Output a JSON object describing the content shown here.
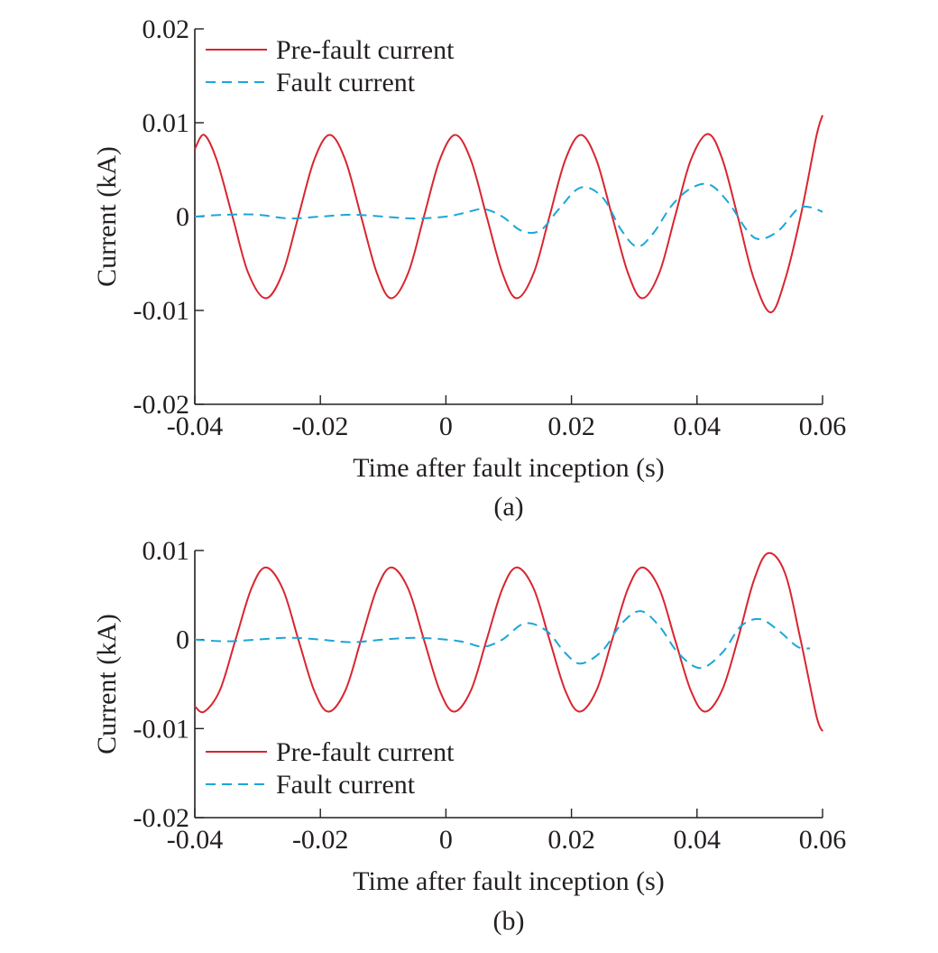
{
  "chart_data": [
    {
      "panel_caption": "(a)",
      "type": "line",
      "xlabel": "Time after fault inception (s)",
      "ylabel": "Current (kA)",
      "xlim": [
        -0.04,
        0.06
      ],
      "ylim": [
        -0.02,
        0.02
      ],
      "xticks": [
        -0.04,
        -0.02,
        0,
        0.02,
        0.04,
        0.06
      ],
      "xtick_labels": [
        "-0.04",
        "-0.02",
        "0",
        "0.02",
        "0.04",
        "0.06"
      ],
      "yticks": [
        -0.02,
        -0.01,
        0,
        0.01,
        0.02
      ],
      "ytick_labels": [
        "-0.02",
        "-0.01",
        "0",
        "0.01",
        "0.02"
      ],
      "legend_position": "top-left",
      "grid": false,
      "series": [
        {
          "name": "Pre-fault current",
          "color": "#d9252f",
          "dash": "solid",
          "x": [
            -0.04,
            -0.0385,
            -0.0365,
            -0.034,
            -0.0315,
            -0.0287,
            -0.026,
            -0.0235,
            -0.021,
            -0.0185,
            -0.016,
            -0.0135,
            -0.011,
            -0.0087,
            -0.006,
            -0.0035,
            -0.001,
            0.0015,
            0.004,
            0.0065,
            0.009,
            0.0113,
            0.014,
            0.0165,
            0.019,
            0.0215,
            0.024,
            0.0265,
            0.029,
            0.0313,
            0.034,
            0.0365,
            0.039,
            0.0417,
            0.044,
            0.0465,
            0.049,
            0.0517,
            0.054,
            0.0565,
            0.059,
            0.06
          ],
          "y": [
            0.0072,
            0.0087,
            0.006,
            0.0,
            -0.006,
            -0.0087,
            -0.006,
            0.0,
            0.006,
            0.0087,
            0.006,
            0.0,
            -0.006,
            -0.0087,
            -0.006,
            0.0,
            0.006,
            0.0087,
            0.006,
            0.0,
            -0.006,
            -0.0087,
            -0.006,
            0.0,
            0.006,
            0.0087,
            0.006,
            0.0,
            -0.006,
            -0.0087,
            -0.006,
            0.0,
            0.006,
            0.0088,
            0.0062,
            0.0,
            -0.0065,
            -0.0102,
            -0.0068,
            0.0,
            0.0085,
            0.0108
          ]
        },
        {
          "name": "Fault current",
          "color": "#1ba6d9",
          "dash": "dashed",
          "x": [
            -0.04,
            -0.035,
            -0.03,
            -0.025,
            -0.02,
            -0.015,
            -0.01,
            -0.005,
            0.0,
            0.003,
            0.006,
            0.009,
            0.012,
            0.015,
            0.018,
            0.0215,
            0.025,
            0.028,
            0.0305,
            0.033,
            0.036,
            0.039,
            0.042,
            0.045,
            0.048,
            0.05,
            0.053,
            0.056,
            0.058,
            0.06
          ],
          "y": [
            0.0,
            0.0002,
            0.0002,
            -0.0002,
            0.0,
            0.0002,
            0.0,
            -0.0002,
            0.0,
            0.0004,
            0.0008,
            0.0,
            -0.0015,
            -0.0015,
            0.0008,
            0.0031,
            0.002,
            -0.0015,
            -0.0032,
            -0.0018,
            0.0012,
            0.003,
            0.0034,
            0.0015,
            -0.0015,
            -0.0024,
            -0.0015,
            0.0008,
            0.001,
            0.0005
          ]
        }
      ]
    },
    {
      "panel_caption": "(b)",
      "type": "line",
      "xlabel": "Time after fault inception (s)",
      "ylabel": "Current (kA)",
      "xlim": [
        -0.04,
        0.06
      ],
      "ylim": [
        -0.02,
        0.01
      ],
      "xticks": [
        -0.04,
        -0.02,
        0,
        0.02,
        0.04,
        0.06
      ],
      "xtick_labels": [
        "-0.04",
        "-0.02",
        "0",
        "0.02",
        "0.04",
        "0.06"
      ],
      "yticks": [
        -0.02,
        -0.01,
        0,
        0.01
      ],
      "ytick_labels": [
        "-0.02",
        "-0.01",
        "0",
        "0.01"
      ],
      "legend_position": "bottom-left",
      "grid": false,
      "series": [
        {
          "name": "Pre-fault current",
          "color": "#d9252f",
          "dash": "solid",
          "x": [
            -0.04,
            -0.0385,
            -0.036,
            -0.0335,
            -0.031,
            -0.0287,
            -0.026,
            -0.0235,
            -0.021,
            -0.0187,
            -0.016,
            -0.0135,
            -0.011,
            -0.0087,
            -0.006,
            -0.0035,
            -0.001,
            0.0013,
            0.004,
            0.0065,
            0.009,
            0.0113,
            0.014,
            0.0165,
            0.019,
            0.0213,
            0.024,
            0.0265,
            0.029,
            0.0313,
            0.034,
            0.0365,
            0.039,
            0.0413,
            0.044,
            0.0465,
            0.049,
            0.0513,
            0.054,
            0.0565,
            0.059,
            0.06
          ],
          "y": [
            -0.0075,
            -0.0081,
            -0.0057,
            0.0,
            0.0057,
            0.0081,
            0.0057,
            0.0,
            -0.0057,
            -0.0081,
            -0.0057,
            0.0,
            0.0057,
            0.0081,
            0.0057,
            0.0,
            -0.0057,
            -0.0081,
            -0.0057,
            0.0,
            0.0057,
            0.0081,
            0.0057,
            0.0,
            -0.0057,
            -0.0081,
            -0.0057,
            0.0,
            0.0057,
            0.0081,
            0.0057,
            0.0,
            -0.0057,
            -0.0081,
            -0.0057,
            0.0,
            0.0065,
            0.0097,
            0.0075,
            0.0,
            -0.0085,
            -0.0103
          ]
        },
        {
          "name": "Fault current",
          "color": "#1ba6d9",
          "dash": "dashed",
          "x": [
            -0.04,
            -0.035,
            -0.03,
            -0.025,
            -0.02,
            -0.015,
            -0.01,
            -0.005,
            0.0,
            0.003,
            0.006,
            0.009,
            0.0125,
            0.016,
            0.019,
            0.0215,
            0.025,
            0.028,
            0.031,
            0.034,
            0.037,
            0.0405,
            0.044,
            0.047,
            0.05,
            0.053,
            0.056,
            0.058
          ],
          "y": [
            0.0,
            -0.0002,
            0.0,
            0.0002,
            0.0,
            -0.0003,
            0.0,
            0.0002,
            0.0,
            -0.0003,
            -0.0008,
            0.0,
            0.0018,
            0.001,
            -0.0015,
            -0.0027,
            -0.0012,
            0.0018,
            0.0032,
            0.0015,
            -0.0015,
            -0.0032,
            -0.0015,
            0.0015,
            0.0023,
            0.001,
            -0.0008,
            -0.001
          ]
        }
      ]
    }
  ]
}
